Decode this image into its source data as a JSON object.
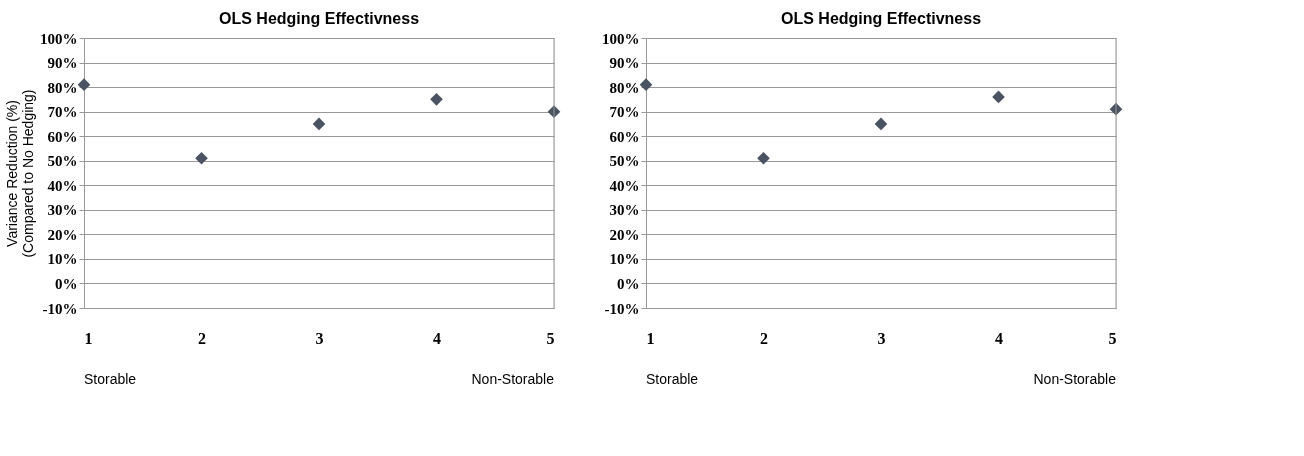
{
  "chart_data": [
    {
      "type": "scatter",
      "title": "OLS Hedging Effectivness",
      "ylabel": "Variance Reduction (%)\n(Compared to No Hedging)",
      "x": [
        1,
        2,
        3,
        4,
        5
      ],
      "series": [
        {
          "color": "#4a5361",
          "values": [
            81,
            51,
            65,
            75,
            70
          ]
        }
      ],
      "xlim": [
        1,
        5
      ],
      "xticks": [
        1,
        2,
        3,
        4,
        5
      ],
      "ylim": [
        -10,
        100
      ],
      "yticks": [
        {
          "value": -10,
          "label": "-10%"
        },
        {
          "value": 0,
          "label": "0%"
        },
        {
          "value": 10,
          "label": "10%"
        },
        {
          "value": 20,
          "label": "20%"
        },
        {
          "value": 30,
          "label": "30%"
        },
        {
          "value": 40,
          "label": "40%"
        },
        {
          "value": 50,
          "label": "50%"
        },
        {
          "value": 60,
          "label": "60%"
        },
        {
          "value": 70,
          "label": "70%"
        },
        {
          "value": 80,
          "label": "80%"
        },
        {
          "value": 90,
          "label": "90%"
        },
        {
          "value": 100,
          "label": "100%"
        }
      ],
      "grid": "y",
      "marker": "diamond",
      "annotations": [
        "Storable",
        "Non-Storable"
      ]
    },
    {
      "type": "scatter",
      "title": "OLS Hedging Effectivness",
      "x": [
        1,
        2,
        3,
        4,
        5
      ],
      "series": [
        {
          "color": "#4a5361",
          "values": [
            81,
            51,
            65,
            76,
            71
          ]
        }
      ],
      "xlim": [
        1,
        5
      ],
      "xticks": [
        1,
        2,
        3,
        4,
        5
      ],
      "ylim": [
        -10,
        100
      ],
      "yticks": [
        {
          "value": -10,
          "label": "-10%"
        },
        {
          "value": 0,
          "label": "0%"
        },
        {
          "value": 10,
          "label": "10%"
        },
        {
          "value": 20,
          "label": "20%"
        },
        {
          "value": 30,
          "label": "30%"
        },
        {
          "value": 40,
          "label": "40%"
        },
        {
          "value": 50,
          "label": "50%"
        },
        {
          "value": 60,
          "label": "60%"
        },
        {
          "value": 70,
          "label": "70%"
        },
        {
          "value": 80,
          "label": "80%"
        },
        {
          "value": 90,
          "label": "90%"
        },
        {
          "value": 100,
          "label": "100%"
        }
      ],
      "grid": "y",
      "marker": "diamond",
      "annotations": [
        "Storable",
        "Non-Storable"
      ]
    }
  ]
}
